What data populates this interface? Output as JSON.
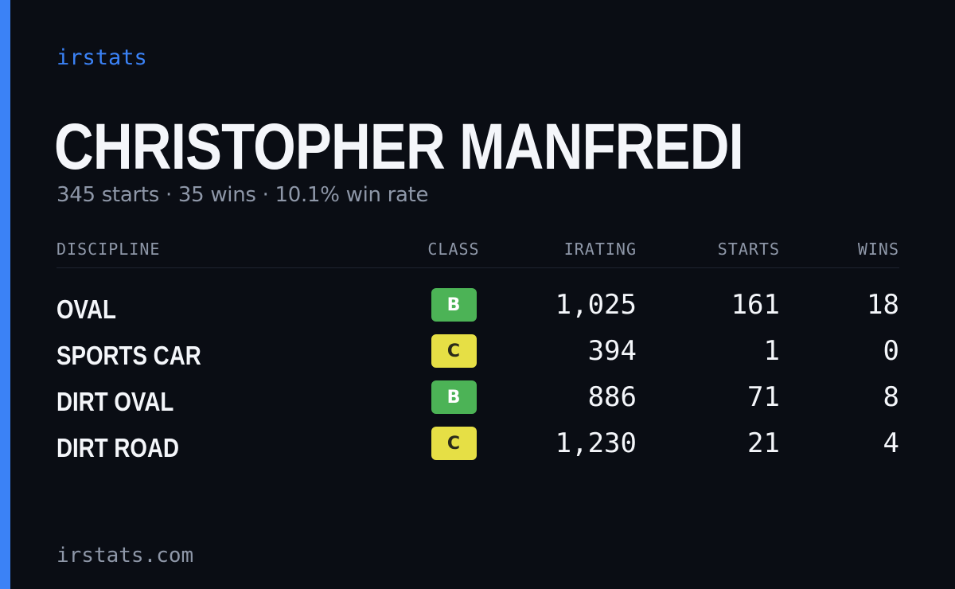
{
  "brand": "irstats",
  "colors": {
    "accent": "#3b82f6",
    "background": "#0a0d14",
    "class_b": "#4cb356",
    "class_c": "#e6df45",
    "muted": "#8e97a8",
    "text": "#f4f6fa"
  },
  "driver": {
    "name": "CHRISTOPHER MANFREDI",
    "summary": "345 starts · 35 wins · 10.1% win rate"
  },
  "table": {
    "headers": [
      "DISCIPLINE",
      "CLASS",
      "IRATING",
      "STARTS",
      "WINS"
    ],
    "rows": [
      {
        "discipline": "OVAL",
        "class": "B",
        "irating": "1,025",
        "starts": "161",
        "wins": "18"
      },
      {
        "discipline": "SPORTS CAR",
        "class": "C",
        "irating": "394",
        "starts": "1",
        "wins": "0"
      },
      {
        "discipline": "DIRT OVAL",
        "class": "B",
        "irating": "886",
        "starts": "71",
        "wins": "8"
      },
      {
        "discipline": "DIRT ROAD",
        "class": "C",
        "irating": "1,230",
        "starts": "21",
        "wins": "4"
      }
    ]
  },
  "footer": "irstats.com"
}
